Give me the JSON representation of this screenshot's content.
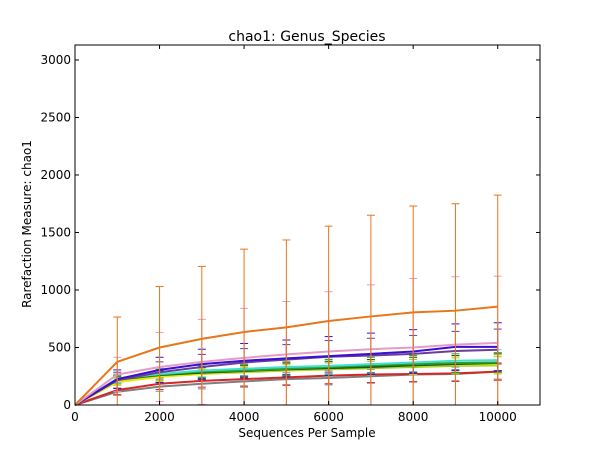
{
  "chart_data": {
    "type": "line",
    "title": "chao1: Genus_Species",
    "xlabel": "Sequences Per Sample",
    "ylabel": "Rarefaction Measure: chao1",
    "xlim": [
      0,
      11000
    ],
    "ylim": [
      0,
      3130
    ],
    "xticks": [
      0,
      2000,
      4000,
      6000,
      8000,
      10000
    ],
    "xtick_labels": [
      "0",
      "2000",
      "4000",
      "6000",
      "8000",
      "10000"
    ],
    "yticks": [
      0,
      500,
      1000,
      1500,
      2000,
      2500,
      3000
    ],
    "ytick_labels": [
      "0",
      "500",
      "1000",
      "1500",
      "2000",
      "2500",
      "3000"
    ],
    "grid": false,
    "x": [
      0,
      1000,
      2000,
      3000,
      4000,
      5000,
      6000,
      7000,
      8000,
      9000,
      10000
    ],
    "series": [
      {
        "color": "#e8761a",
        "values": [
          0,
          375,
          500,
          575,
          635,
          675,
          730,
          770,
          805,
          820,
          855
        ],
        "err": [
          0,
          390,
          530,
          630,
          720,
          760,
          825,
          880,
          925,
          930,
          970
        ]
      },
      {
        "color": "#e69ac8",
        "values": [
          0,
          265,
          330,
          375,
          410,
          440,
          465,
          485,
          500,
          525,
          540
        ],
        "err": [
          0,
          150,
          300,
          370,
          430,
          460,
          520,
          560,
          600,
          590,
          580
        ]
      },
      {
        "color": "#3b0fcf",
        "values": [
          0,
          225,
          305,
          355,
          385,
          405,
          425,
          445,
          465,
          505,
          505
        ],
        "err": [
          0,
          80,
          110,
          130,
          150,
          160,
          170,
          180,
          190,
          200,
          210
        ]
      },
      {
        "color": "#6a3d9a",
        "values": [
          0,
          215,
          285,
          330,
          370,
          395,
          420,
          430,
          445,
          470,
          480
        ],
        "err": [
          0,
          70,
          90,
          110,
          120,
          130,
          140,
          150,
          160,
          170,
          180
        ]
      },
      {
        "color": "#40e0d0",
        "values": [
          0,
          230,
          270,
          300,
          315,
          330,
          340,
          355,
          370,
          385,
          390
        ],
        "err": [
          0,
          40,
          50,
          55,
          60,
          65,
          70,
          75,
          80,
          85,
          90
        ]
      },
      {
        "color": "#2ca02c",
        "values": [
          0,
          225,
          265,
          290,
          300,
          315,
          330,
          345,
          355,
          365,
          370
        ],
        "err": [
          0,
          35,
          45,
          50,
          55,
          60,
          65,
          70,
          75,
          80,
          85
        ]
      },
      {
        "color": "#1a5a1a",
        "values": [
          0,
          220,
          260,
          280,
          295,
          310,
          320,
          330,
          345,
          355,
          365
        ],
        "err": [
          0,
          30,
          40,
          45,
          50,
          55,
          60,
          65,
          70,
          75,
          80
        ]
      },
      {
        "color": "#e8e800",
        "values": [
          0,
          200,
          245,
          270,
          290,
          305,
          315,
          330,
          340,
          350,
          355
        ],
        "err": [
          0,
          30,
          40,
          45,
          50,
          55,
          60,
          65,
          70,
          75,
          80
        ]
      },
      {
        "color": "#9acd32",
        "values": [
          0,
          210,
          250,
          270,
          285,
          300,
          310,
          320,
          330,
          340,
          345
        ],
        "err": [
          0,
          30,
          35,
          40,
          45,
          50,
          55,
          60,
          65,
          70,
          75
        ]
      },
      {
        "color": "#d62728",
        "values": [
          0,
          130,
          185,
          210,
          225,
          240,
          255,
          265,
          270,
          275,
          290
        ],
        "err": [
          0,
          40,
          50,
          55,
          60,
          65,
          70,
          70,
          70,
          70,
          75
        ]
      },
      {
        "color": "#7f7f7f",
        "values": [
          0,
          115,
          160,
          185,
          205,
          225,
          235,
          250,
          265,
          270,
          290
        ],
        "err": [
          0,
          30,
          40,
          45,
          50,
          55,
          60,
          60,
          60,
          60,
          65
        ]
      }
    ]
  }
}
